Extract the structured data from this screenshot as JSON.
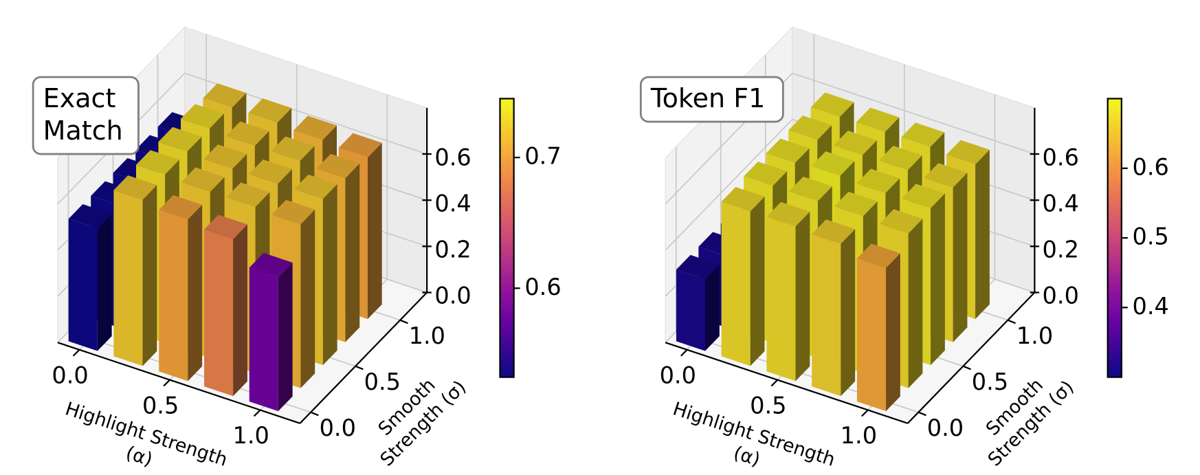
{
  "chart_data": [
    {
      "type": "bar3d",
      "title": [
        "Exact",
        "Match"
      ],
      "xlabel": [
        "Highlight Strength",
        "(α)"
      ],
      "ylabel": [
        "Smooth",
        "Strength (σ)"
      ],
      "x": [
        0,
        0.25,
        0.5,
        0.75,
        1
      ],
      "y": [
        0,
        0.25,
        0.5,
        0.75,
        1
      ],
      "values": [
        [
          0.53,
          0.72,
          0.7,
          0.68,
          0.58
        ],
        [
          0.53,
          0.73,
          0.72,
          0.72,
          0.71
        ],
        [
          0.53,
          0.73,
          0.72,
          0.72,
          0.72
        ],
        [
          0.53,
          0.73,
          0.72,
          0.72,
          0.71
        ],
        [
          0.53,
          0.72,
          0.72,
          0.71,
          0.7
        ]
      ],
      "xlim": [
        -0.12,
        1.22
      ],
      "ylim": [
        -0.12,
        1.3
      ],
      "zlim": [
        0,
        0.8
      ],
      "xticks": [
        {
          "value": 0,
          "label": "0.0"
        },
        0.5,
        {
          "value": 1,
          "label": "1.0"
        }
      ],
      "yticks": [
        {
          "value": 0,
          "label": "0.0"
        },
        0.5,
        {
          "value": 1,
          "label": "1.0"
        }
      ],
      "zticks": [
        {
          "value": 0,
          "label": "0.0"
        },
        0.2,
        0.4,
        0.6
      ],
      "colormap": "plasma",
      "clim": [
        0.532,
        0.745
      ],
      "cticks": [
        0.6,
        0.7
      ]
    },
    {
      "type": "bar3d",
      "title": [
        "Token F1"
      ],
      "xlabel": [
        "Highlight Strength",
        "(α)"
      ],
      "ylabel": [
        "Smooth",
        "Strength (σ)"
      ],
      "x": [
        0,
        0.25,
        0.5,
        0.75,
        1
      ],
      "y": [
        0,
        0.25,
        0.5,
        0.75,
        1
      ],
      "values": [
        [
          0.31,
          0.67,
          0.67,
          0.66,
          0.62
        ],
        [
          0.31,
          0.68,
          0.68,
          0.68,
          0.67
        ],
        [
          0.31,
          0.68,
          0.69,
          0.68,
          0.68
        ],
        [
          0.31,
          0.68,
          0.68,
          0.68,
          0.67
        ],
        [
          0.31,
          0.68,
          0.68,
          0.68,
          0.67
        ]
      ],
      "xlim": [
        -0.12,
        1.22
      ],
      "ylim": [
        -0.12,
        1.3
      ],
      "zlim": [
        0,
        0.8
      ],
      "xticks": [
        {
          "value": 0,
          "label": "0.0"
        },
        0.5,
        {
          "value": 1,
          "label": "1.0"
        }
      ],
      "yticks": [
        {
          "value": 0,
          "label": "0.0"
        },
        0.5,
        {
          "value": 1,
          "label": "1.0"
        }
      ],
      "zticks": [
        {
          "value": 0,
          "label": "0.0"
        },
        0.2,
        0.4,
        0.6
      ],
      "colormap": "plasma",
      "clim": [
        0.3,
        0.7
      ],
      "cticks": [
        0.4,
        0.5,
        0.6
      ]
    }
  ]
}
